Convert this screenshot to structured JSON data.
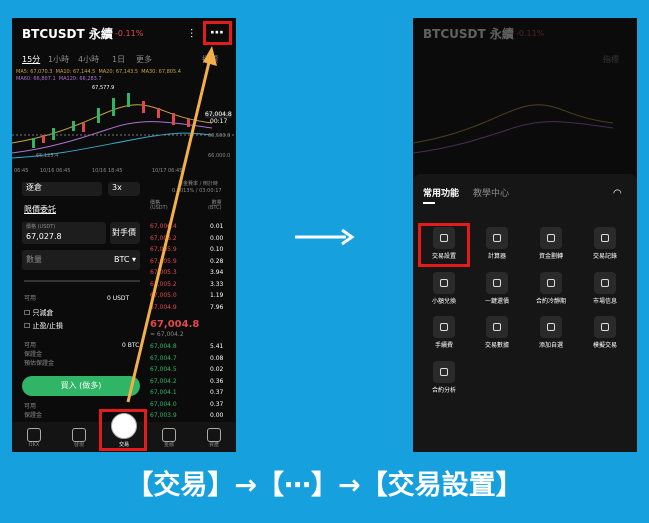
{
  "left": {
    "header": {
      "symbol": "BTCUSDT 永續",
      "change": "-0.11%",
      "more": "⋯"
    },
    "timeframes": [
      "15分",
      "1小時",
      "4小時",
      "1日",
      "更多"
    ],
    "indicator": "指標",
    "ma_lines": [
      "MA5: 67,070.3  MA10: 67,144.5  MA20: 67,143.5  MA30: 67,805.4",
      "MA60: 66,807.1  MA120: 66,283.7"
    ],
    "chart_labels": [
      "67,577.9",
      "67,004.8",
      "00:17",
      "66,500.0",
      "66,000.0",
      "65,125.4"
    ],
    "time_labels": [
      "06:45",
      "10/16 06:45",
      "10/16 18:45",
      "10/17 06:45"
    ],
    "form": {
      "margin": "逐倉",
      "leverage": "3x",
      "order_type": "限價委託",
      "price_label": "價格 (USDT)",
      "price": "67,027.8",
      "opponent": "對手價",
      "qty": "數量",
      "unit": "BTC ▾",
      "available": "可用",
      "available_value": "0 USDT",
      "reduce": "只減倉",
      "tpsl": "止盈/止損",
      "avail2": "可用",
      "avail2_value": "0 BTC",
      "margin_label": "保證金",
      "fee_label": "預估保證金",
      "buy": "買入 (做多)",
      "avail3": "可用",
      "margin3": "保證金"
    },
    "book": {
      "funding": "資金費率 / 倒計時",
      "funding_value": "0.0013% / 03:00:17",
      "price_head": "價格\n(USDT)",
      "qty_head": "數量\n(BTC)",
      "sells": [
        [
          "67,006.4",
          "0.01"
        ],
        [
          "67,006.2",
          "0.00"
        ],
        [
          "67,005.9",
          "0.10"
        ],
        [
          "67,005.9",
          "0.28"
        ],
        [
          "67,005.3",
          "3.94"
        ],
        [
          "67,005.2",
          "3.33"
        ],
        [
          "67,005.0",
          "1.19"
        ],
        [
          "67,004.9",
          "7.96"
        ]
      ],
      "mid": "67,004.8",
      "mark": "≈ 67,004.2",
      "buys": [
        [
          "67,004.8",
          "5.41"
        ],
        [
          "67,004.7",
          "0.08"
        ],
        [
          "67,004.5",
          "0.02"
        ],
        [
          "67,004.2",
          "0.36"
        ],
        [
          "67,004.1",
          "0.37"
        ],
        [
          "67,004.0",
          "0.37"
        ],
        [
          "67,003.9",
          "0.00"
        ]
      ]
    },
    "nav": [
      "OKX",
      "發現",
      "交易",
      "金融",
      "資產"
    ]
  },
  "right": {
    "tabs": [
      "常用功能",
      "教學中心"
    ],
    "items": [
      "交易設置",
      "計算器",
      "資金劃轉",
      "交易記錄",
      "小額兌換",
      "一鍵還債",
      "合約冷靜期",
      "市場信息",
      "手續費",
      "交易數據",
      "添加自選",
      "模擬交易",
      "合約分析"
    ]
  },
  "caption": "【交易】→【⋯】→【交易設置】"
}
